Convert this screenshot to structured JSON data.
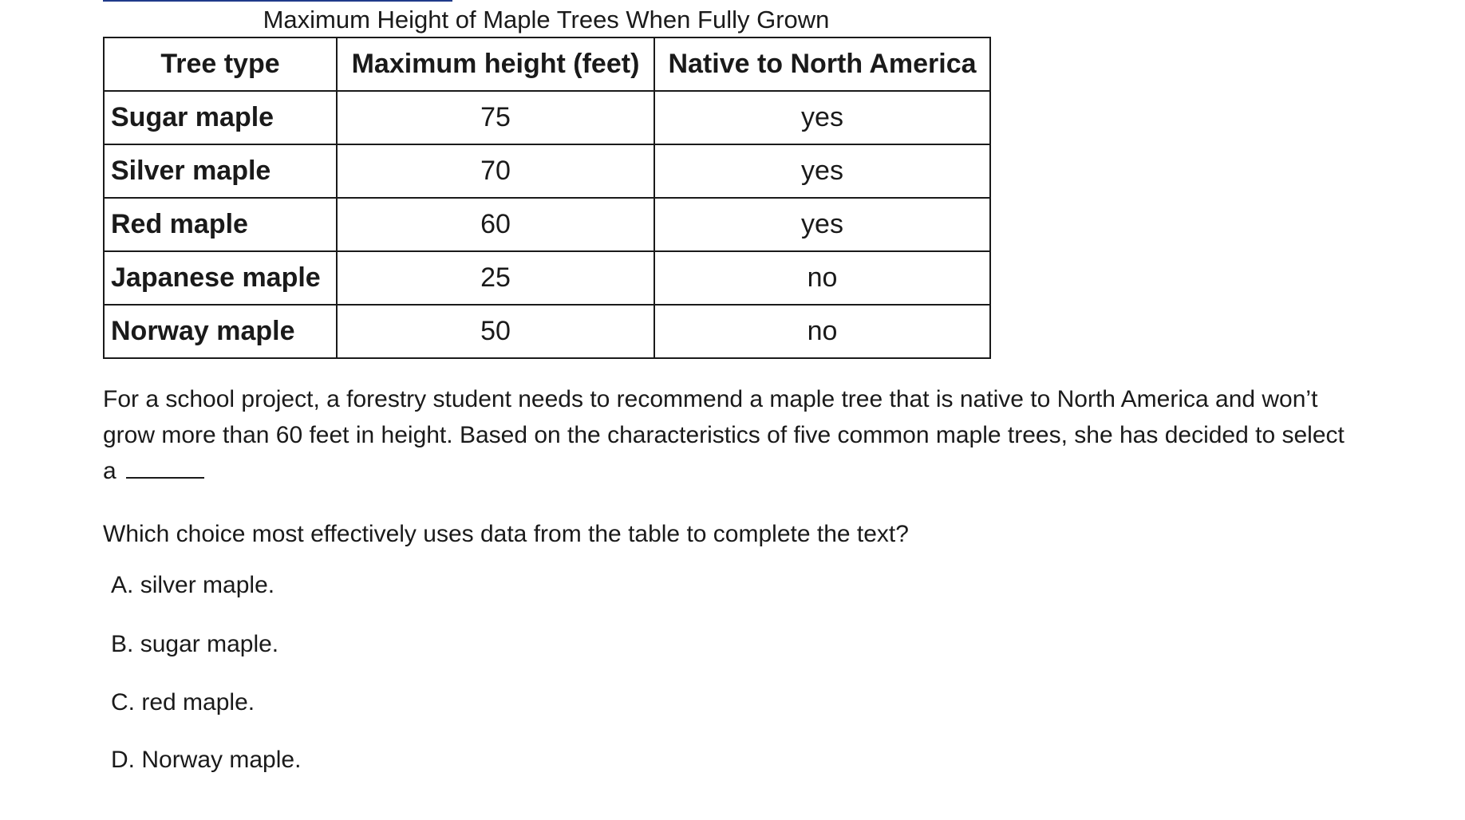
{
  "table": {
    "caption": "Maximum Height of Maple Trees When Fully Grown",
    "headers": [
      "Tree type",
      "Maximum height (feet)",
      "Native to North America"
    ],
    "rows": [
      {
        "tree": "Sugar maple",
        "height": "75",
        "native": "yes"
      },
      {
        "tree": "Silver maple",
        "height": "70",
        "native": "yes"
      },
      {
        "tree": "Red maple",
        "height": "60",
        "native": "yes"
      },
      {
        "tree": "Japanese maple",
        "height": "25",
        "native": "no"
      },
      {
        "tree": "Norway maple",
        "height": "50",
        "native": "no"
      }
    ]
  },
  "passage": {
    "text": "For a school project, a forestry student needs to recommend a maple tree that is native to North America and won’t grow more than 60 feet in height. Based on the characteristics of five common maple trees, she has decided to select a"
  },
  "question": {
    "prompt": "Which choice most effectively uses data from the table to complete the text?",
    "choices": [
      {
        "letter": "A.",
        "text": "silver maple."
      },
      {
        "letter": "B.",
        "text": "sugar maple."
      },
      {
        "letter": "C.",
        "text": "red maple."
      },
      {
        "letter": "D.",
        "text": "Norway maple."
      }
    ]
  }
}
